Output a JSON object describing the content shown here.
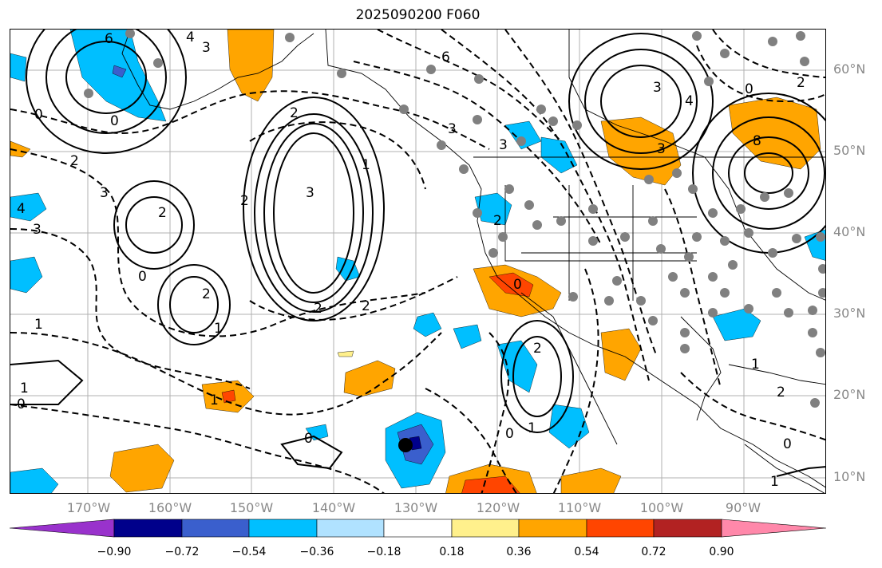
{
  "title": "2025090200 F060",
  "lat_labels": [
    "60°N",
    "50°N",
    "40°N",
    "30°N",
    "20°N",
    "10°N"
  ],
  "lon_labels": [
    "170°W",
    "160°W",
    "150°W",
    "140°W",
    "130°W",
    "120°W",
    "110°W",
    "100°W",
    "90°W"
  ],
  "colorbar": {
    "ticks": [
      "−0.90",
      "−0.72",
      "−0.54",
      "−0.36",
      "−0.18",
      "0.18",
      "0.36",
      "0.54",
      "0.72",
      "0.90"
    ],
    "colors": [
      "#9932cc",
      "#00008b",
      "#3a5fcd",
      "#00bfff",
      "#b0e2ff",
      "#ffffff",
      "#fff08c",
      "#ffa500",
      "#ff4500",
      "#b22222",
      "#ff88aa"
    ]
  },
  "contour_labels": [
    "6",
    "3",
    "4",
    "0",
    "0",
    "2",
    "3",
    "3",
    "1",
    "2",
    "4",
    "2",
    "2",
    "3",
    "1",
    "0",
    "2",
    "1",
    "2",
    "2",
    "3",
    "6",
    "3",
    "4",
    "0",
    "0",
    "2",
    "3",
    "3",
    "8",
    "2",
    "2",
    "1",
    "0",
    "1",
    "2",
    "0",
    "1",
    "0",
    "1",
    "1",
    "0"
  ]
}
